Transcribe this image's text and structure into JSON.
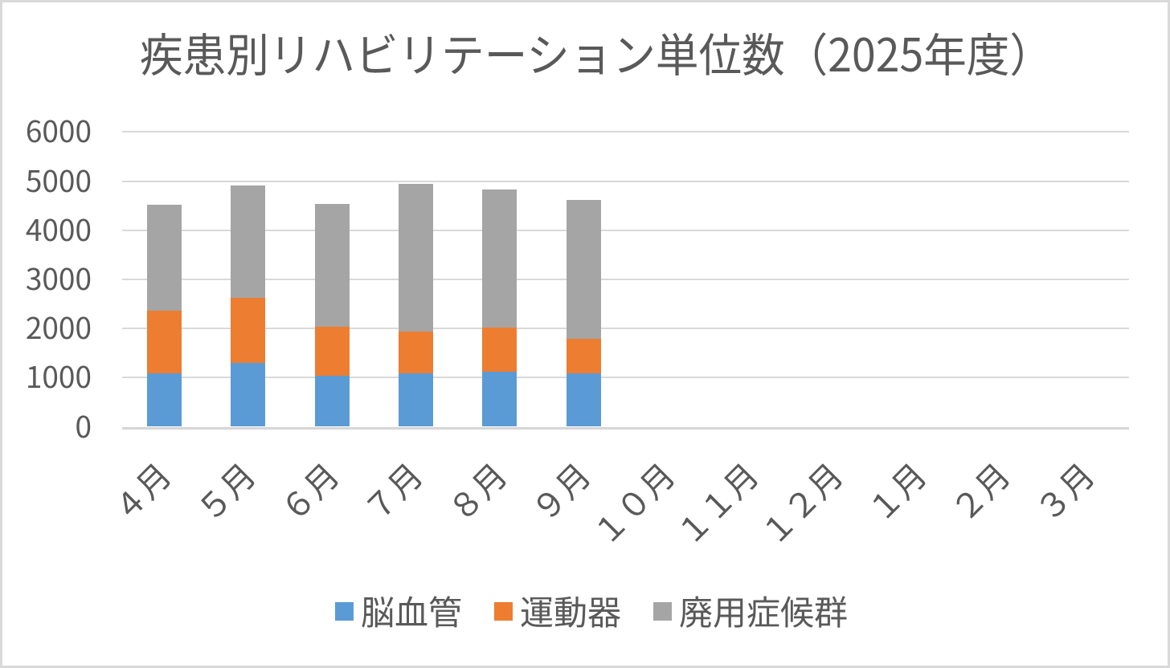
{
  "chart_data": {
    "type": "bar",
    "stacked": true,
    "title": "疾患別リハビリテーション単位数（2025年度）",
    "categories": [
      "４月",
      "５月",
      "６月",
      "７月",
      "８月",
      "９月",
      "１０月",
      "１１月",
      "１２月",
      "１月",
      "２月",
      "３月"
    ],
    "series": [
      {
        "name": "脳血管",
        "color": "#5B9BD5",
        "values": [
          1080,
          1300,
          1040,
          1080,
          1120,
          1090,
          null,
          null,
          null,
          null,
          null,
          null
        ]
      },
      {
        "name": "運動器",
        "color": "#ED7D31",
        "values": [
          1280,
          1330,
          990,
          860,
          890,
          700,
          null,
          null,
          null,
          null,
          null,
          null
        ]
      },
      {
        "name": "廃用症候群",
        "color": "#A5A5A5",
        "values": [
          2150,
          2280,
          2510,
          3010,
          2820,
          2830,
          null,
          null,
          null,
          null,
          null,
          null
        ]
      }
    ],
    "ylim": [
      0,
      6000
    ],
    "ytick_step": 1000,
    "ytick_labels": [
      "0",
      "1000",
      "2000",
      "3000",
      "4000",
      "5000",
      "6000"
    ],
    "grid": true,
    "legend_position": "bottom",
    "xlabel": "",
    "ylabel": ""
  },
  "colors": {
    "text": "#595959",
    "gridline": "#D9D9D9",
    "axis_line": "#D6D6D6",
    "border": "#D9D9D9",
    "background": "#FFFFFF"
  }
}
